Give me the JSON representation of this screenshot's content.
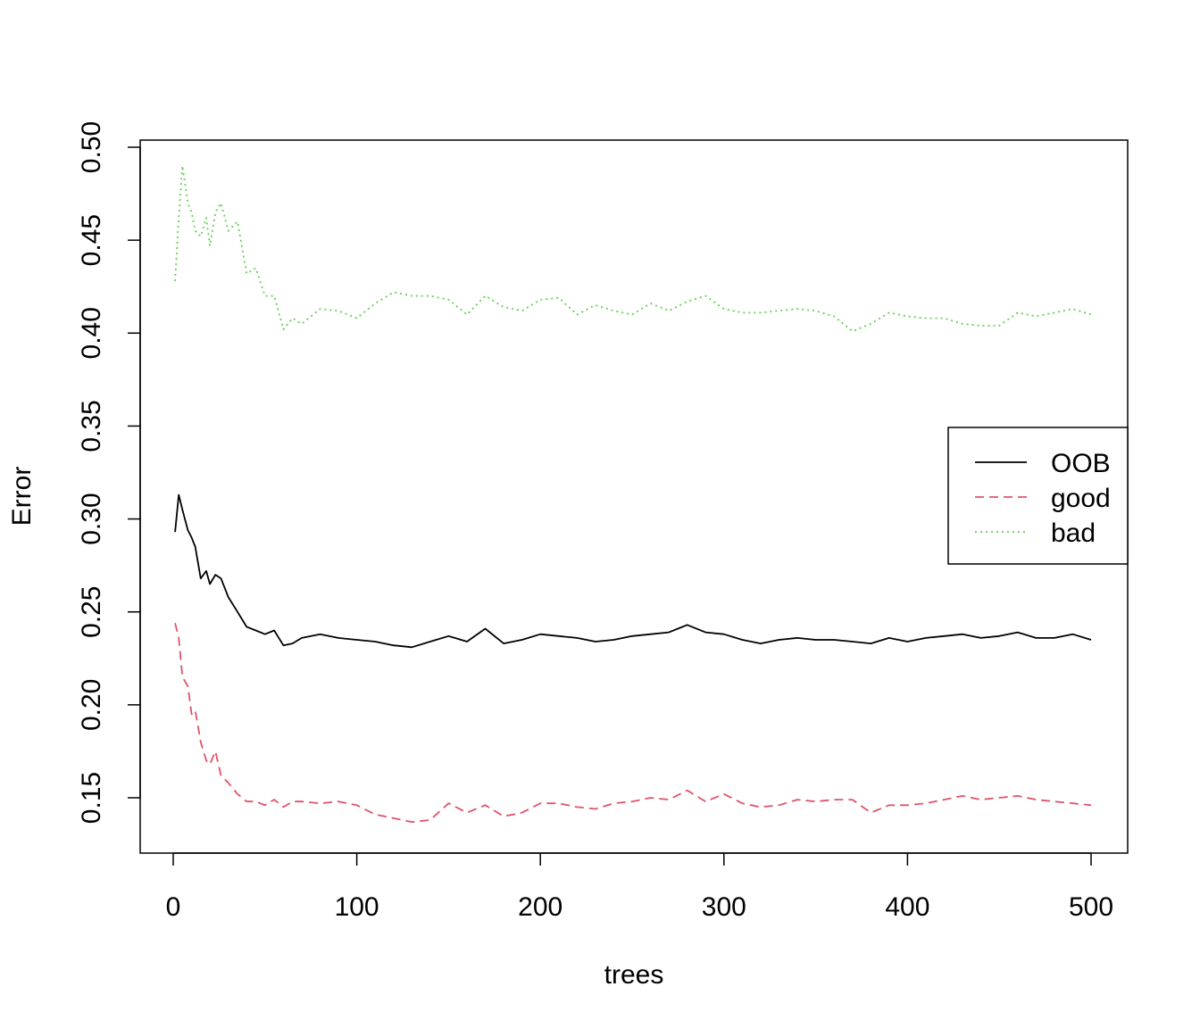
{
  "chart_data": {
    "type": "line",
    "title": "",
    "xlabel": "trees",
    "ylabel": "Error",
    "xlim": [
      0,
      500
    ],
    "ylim": [
      0.13,
      0.5
    ],
    "x_ticks": [
      0,
      100,
      200,
      300,
      400,
      500
    ],
    "x_tick_labels": [
      "0",
      "100",
      "200",
      "300",
      "400",
      "500"
    ],
    "y_ticks": [
      0.15,
      0.2,
      0.25,
      0.3,
      0.35,
      0.4,
      0.45,
      0.5
    ],
    "y_tick_labels": [
      "0.15",
      "0.20",
      "0.25",
      "0.30",
      "0.35",
      "0.40",
      "0.45",
      "0.50"
    ],
    "grid": false,
    "legend": {
      "position": "right",
      "entries": [
        "OOB",
        "good",
        "bad"
      ]
    },
    "x": [
      1,
      3,
      5,
      8,
      10,
      12,
      15,
      18,
      20,
      23,
      26,
      30,
      35,
      40,
      45,
      50,
      55,
      60,
      65,
      70,
      80,
      90,
      100,
      110,
      120,
      130,
      140,
      150,
      160,
      170,
      180,
      190,
      200,
      210,
      220,
      230,
      240,
      250,
      260,
      270,
      280,
      290,
      300,
      310,
      320,
      330,
      340,
      350,
      360,
      370,
      380,
      390,
      400,
      410,
      420,
      430,
      440,
      450,
      460,
      470,
      480,
      490,
      500
    ],
    "series": [
      {
        "name": "OOB",
        "color": "#000000",
        "dash": "solid",
        "values": [
          0.293,
          0.313,
          0.305,
          0.294,
          0.29,
          0.285,
          0.268,
          0.272,
          0.265,
          0.27,
          0.268,
          0.258,
          0.25,
          0.242,
          0.24,
          0.238,
          0.24,
          0.232,
          0.233,
          0.236,
          0.238,
          0.236,
          0.235,
          0.234,
          0.232,
          0.231,
          0.234,
          0.237,
          0.234,
          0.241,
          0.233,
          0.235,
          0.238,
          0.237,
          0.236,
          0.234,
          0.235,
          0.237,
          0.238,
          0.239,
          0.243,
          0.239,
          0.238,
          0.235,
          0.233,
          0.235,
          0.236,
          0.235,
          0.235,
          0.234,
          0.233,
          0.236,
          0.234,
          0.236,
          0.237,
          0.238,
          0.236,
          0.237,
          0.239,
          0.236,
          0.236,
          0.238,
          0.235
        ]
      },
      {
        "name": "good",
        "color": "#DF536B",
        "dash": "dashed",
        "values": [
          0.244,
          0.236,
          0.215,
          0.21,
          0.195,
          0.197,
          0.18,
          0.17,
          0.168,
          0.175,
          0.162,
          0.158,
          0.152,
          0.148,
          0.148,
          0.146,
          0.149,
          0.145,
          0.148,
          0.148,
          0.147,
          0.148,
          0.146,
          0.141,
          0.139,
          0.137,
          0.138,
          0.147,
          0.142,
          0.146,
          0.14,
          0.142,
          0.147,
          0.147,
          0.145,
          0.144,
          0.147,
          0.148,
          0.15,
          0.149,
          0.154,
          0.148,
          0.152,
          0.147,
          0.145,
          0.146,
          0.149,
          0.148,
          0.149,
          0.149,
          0.142,
          0.146,
          0.146,
          0.147,
          0.149,
          0.151,
          0.149,
          0.15,
          0.151,
          0.149,
          0.148,
          0.147,
          0.146
        ]
      },
      {
        "name": "bad",
        "color": "#61D04F",
        "dash": "dotted",
        "values": [
          0.428,
          0.462,
          0.49,
          0.47,
          0.465,
          0.455,
          0.452,
          0.462,
          0.447,
          0.465,
          0.47,
          0.455,
          0.46,
          0.432,
          0.435,
          0.42,
          0.42,
          0.402,
          0.408,
          0.405,
          0.413,
          0.412,
          0.408,
          0.416,
          0.422,
          0.42,
          0.42,
          0.418,
          0.41,
          0.42,
          0.414,
          0.412,
          0.418,
          0.419,
          0.41,
          0.415,
          0.412,
          0.41,
          0.416,
          0.412,
          0.417,
          0.42,
          0.413,
          0.411,
          0.411,
          0.412,
          0.413,
          0.412,
          0.409,
          0.401,
          0.405,
          0.411,
          0.409,
          0.408,
          0.408,
          0.405,
          0.404,
          0.404,
          0.411,
          0.409,
          0.411,
          0.413,
          0.41
        ]
      }
    ]
  }
}
